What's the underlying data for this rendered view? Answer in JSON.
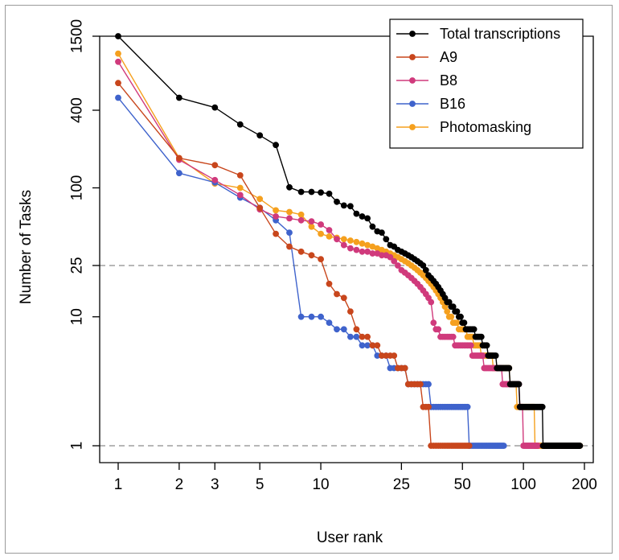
{
  "chart_data": {
    "type": "line",
    "xscale": "log",
    "yscale": "log",
    "xlabel": "User rank",
    "ylabel": "Number of Tasks",
    "xlim": [
      1,
      200
    ],
    "ylim": [
      1,
      1500
    ],
    "xticks": [
      {
        "value": 1,
        "label": "1"
      },
      {
        "value": 2,
        "label": "2"
      },
      {
        "value": 3,
        "label": "3"
      },
      {
        "value": 5,
        "label": "5"
      },
      {
        "value": 10,
        "label": "10"
      },
      {
        "value": 25,
        "label": "25"
      },
      {
        "value": 50,
        "label": "50"
      },
      {
        "value": 100,
        "label": "100"
      },
      {
        "value": 200,
        "label": "200"
      }
    ],
    "yticks": [
      {
        "value": 1,
        "label": "1"
      },
      {
        "value": 10,
        "label": "10"
      },
      {
        "value": 25,
        "label": "25"
      },
      {
        "value": 100,
        "label": "100"
      },
      {
        "value": 400,
        "label": "400"
      },
      {
        "value": 1500,
        "label": "1500"
      }
    ],
    "reference_lines": [
      25,
      1
    ],
    "legend_position": "top-right",
    "series": [
      {
        "name": "Total transcriptions",
        "color": "#000000",
        "head": [
          1500,
          500,
          420,
          310,
          255,
          215,
          101,
          93,
          93,
          92,
          90,
          78,
          73,
          72,
          63,
          60,
          58,
          50,
          46,
          45,
          40,
          36,
          35,
          33,
          32,
          31,
          30,
          29,
          28,
          27,
          26,
          25,
          23,
          21,
          20,
          19,
          18,
          17,
          16,
          15,
          14,
          13,
          13,
          12,
          12,
          11,
          11,
          10,
          10,
          9,
          9,
          8,
          8
        ],
        "steps": [
          [
            57,
            8
          ],
          [
            62,
            7
          ],
          [
            66,
            6
          ],
          [
            73,
            5
          ],
          [
            85,
            4
          ],
          [
            95,
            3
          ],
          [
            124,
            2
          ],
          [
            139,
            1
          ],
          [
            190,
            1
          ]
        ]
      },
      {
        "name": "A9",
        "color": "#C8461C",
        "head": [
          650,
          170,
          150,
          125,
          70,
          44,
          35,
          32,
          30,
          28,
          18,
          15,
          14,
          11,
          8,
          7,
          7,
          6,
          6,
          5,
          5,
          5,
          5
        ],
        "steps": [
          [
            23,
            5
          ],
          [
            26,
            4
          ],
          [
            31,
            3
          ],
          [
            34,
            2
          ],
          [
            42,
            1
          ],
          [
            54,
            1
          ]
        ]
      },
      {
        "name": "B8",
        "color": "#D03A7C",
        "head": [
          950,
          165,
          115,
          88,
          68,
          60,
          58,
          56,
          55,
          52,
          47,
          40,
          36,
          34,
          33,
          32,
          32,
          31,
          31,
          30,
          30,
          29,
          27,
          25,
          23,
          22,
          21,
          20,
          19,
          18,
          17,
          16,
          15,
          14,
          13
        ],
        "steps": [
          [
            35,
            13
          ],
          [
            32,
            12
          ],
          [
            33,
            11
          ],
          [
            34,
            10
          ],
          [
            36,
            9
          ],
          [
            38,
            8
          ],
          [
            45,
            7
          ],
          [
            55,
            6
          ],
          [
            63,
            5
          ],
          [
            78,
            4
          ],
          [
            95,
            3
          ],
          [
            99,
            2
          ],
          [
            118,
            1
          ]
        ]
      },
      {
        "name": "B16",
        "color": "#3F63CC",
        "head": [
          500,
          130,
          110,
          84,
          70,
          56,
          45,
          10,
          10,
          10,
          9,
          8,
          8,
          7,
          7,
          6,
          6,
          6,
          5,
          5,
          5,
          4,
          4,
          4
        ],
        "steps": [
          [
            26,
            4
          ],
          [
            30,
            3
          ],
          [
            34,
            3
          ],
          [
            40,
            2
          ],
          [
            53,
            2
          ],
          [
            80,
            1
          ]
        ]
      },
      {
        "name": "Photomasking",
        "color": "#F5A01E",
        "head": [
          1100,
          170,
          108,
          100,
          82,
          67,
          65,
          62,
          50,
          44,
          42,
          41,
          40,
          39,
          38,
          37,
          36,
          35,
          34,
          33,
          32,
          31,
          30,
          29,
          28,
          27,
          26,
          25,
          24,
          23,
          22,
          21,
          20,
          19,
          18,
          17,
          16,
          15,
          14,
          13,
          12,
          11,
          10,
          10,
          9,
          9
        ],
        "steps": [
          [
            47,
            9
          ],
          [
            52,
            8
          ],
          [
            56,
            7
          ],
          [
            61,
            6
          ],
          [
            70,
            5
          ],
          [
            85,
            4
          ],
          [
            92,
            3
          ],
          [
            113,
            2
          ],
          [
            135,
            1
          ],
          [
            190,
            1
          ]
        ]
      }
    ]
  }
}
